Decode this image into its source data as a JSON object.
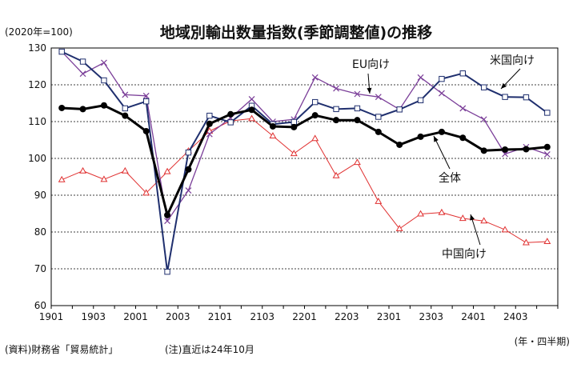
{
  "chart_data": {
    "type": "line",
    "title": "地域別輸出数量指数(季節調整値)の推移",
    "unit_label": "(2020年=100)",
    "x_axis_label": "(年・四半期)",
    "source_note": "(資料)財務省「貿易統計」",
    "footnote": "(注)直近は24年10月",
    "ylim": [
      60,
      130
    ],
    "yticks": [
      "60",
      "70",
      "80",
      "90",
      "100",
      "110",
      "120",
      "130"
    ],
    "xtick_labels": [
      "1901",
      "1903",
      "2001",
      "2003",
      "2101",
      "2103",
      "2201",
      "2203",
      "2301",
      "2303",
      "2401",
      "2403"
    ],
    "grid": true,
    "series": [
      {
        "name": "米国向け",
        "label": "米国向け",
        "color": "#1f2f6e",
        "marker": "square",
        "width": 2,
        "values": [
          129,
          126.3,
          121.2,
          113.6,
          115.5,
          69.2,
          101.6,
          111.6,
          109.8,
          114.3,
          109.3,
          109.9,
          115.3,
          113.4,
          113.6,
          111.3,
          113.3,
          115.8,
          121.6,
          123.1,
          119.3,
          116.7,
          116.6,
          112.4
        ]
      },
      {
        "name": "EU向け",
        "label": "EU向け",
        "color": "#7b3f99",
        "marker": "x",
        "width": 1.3,
        "values": [
          129,
          123,
          126,
          117.3,
          117,
          83,
          91.3,
          106.6,
          111,
          116.1,
          110,
          110.6,
          122,
          119,
          117.5,
          116.7,
          113.3,
          122,
          117.7,
          113.6,
          110.6,
          101.2,
          103.1,
          101.1
        ]
      },
      {
        "name": "全体",
        "label": "全体",
        "color": "#000000",
        "marker": "circle",
        "width": 3,
        "values": [
          113.7,
          113.4,
          114.4,
          111.6,
          107.4,
          84.6,
          97,
          109.4,
          112,
          113.2,
          108.7,
          108.5,
          111.7,
          110.4,
          110.4,
          107.2,
          103.7,
          105.9,
          107.2,
          105.6,
          102.1,
          102.4,
          102.5,
          103.1
        ]
      },
      {
        "name": "中国向け",
        "label": "中国向け",
        "color": "#e03030",
        "marker": "triangle",
        "width": 1,
        "values": [
          94.2,
          96.6,
          94.3,
          96.6,
          90.6,
          96.4,
          102,
          107.4,
          110.2,
          110.8,
          106.1,
          101.3,
          105.4,
          95.3,
          98.9,
          88.3,
          80.9,
          84.9,
          85.3,
          83.7,
          83,
          80.6,
          77.1,
          77.4
        ]
      }
    ]
  }
}
